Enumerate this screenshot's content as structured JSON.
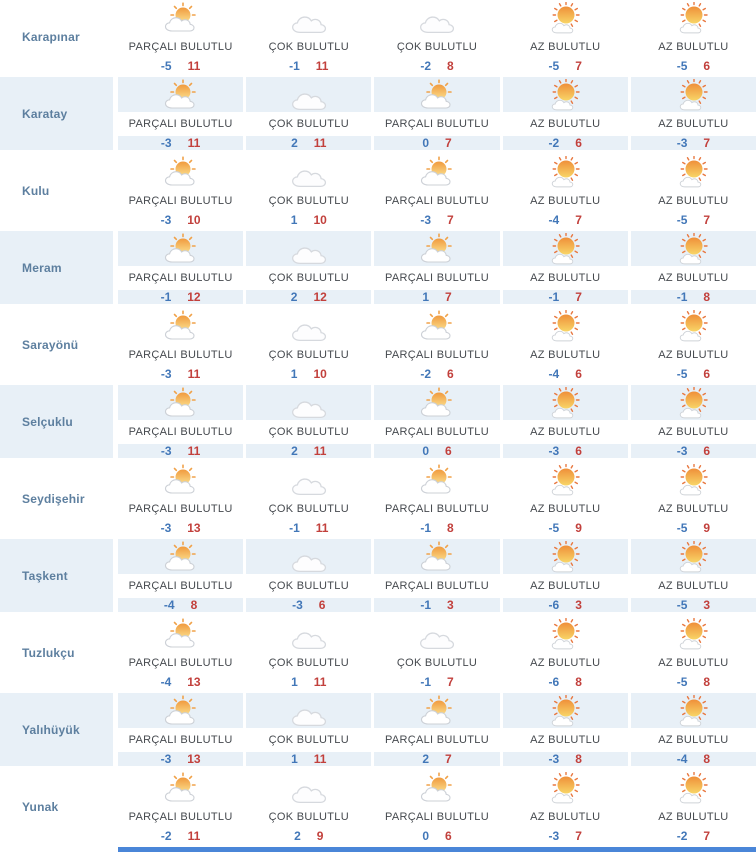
{
  "colors": {
    "row_highlight": "#e8f0f7",
    "district_text": "#5d7f9f",
    "condition_text": "#45494e",
    "min_temp": "#4277b8",
    "max_temp": "#c2403c",
    "bottom_bar": "#4a86d8"
  },
  "rows": [
    {
      "district": "Karapınar",
      "days": [
        {
          "condition": "PARÇALI BULUTLU",
          "icon": "partly-cloudy-icon",
          "min": "-5",
          "max": "11"
        },
        {
          "condition": "ÇOK BULUTLU",
          "icon": "cloudy-icon",
          "min": "-1",
          "max": "11"
        },
        {
          "condition": "ÇOK BULUTLU",
          "icon": "cloudy-icon",
          "min": "-2",
          "max": "8"
        },
        {
          "condition": "AZ BULUTLU",
          "icon": "mostly-sunny-icon",
          "min": "-5",
          "max": "7"
        },
        {
          "condition": "AZ BULUTLU",
          "icon": "mostly-sunny-icon",
          "min": "-5",
          "max": "6"
        }
      ]
    },
    {
      "district": "Karatay",
      "days": [
        {
          "condition": "PARÇALI BULUTLU",
          "icon": "partly-cloudy-icon",
          "min": "-3",
          "max": "11"
        },
        {
          "condition": "ÇOK BULUTLU",
          "icon": "cloudy-icon",
          "min": "2",
          "max": "11"
        },
        {
          "condition": "PARÇALI BULUTLU",
          "icon": "partly-cloudy-icon",
          "min": "0",
          "max": "7"
        },
        {
          "condition": "AZ BULUTLU",
          "icon": "mostly-sunny-icon",
          "min": "-2",
          "max": "6"
        },
        {
          "condition": "AZ BULUTLU",
          "icon": "mostly-sunny-icon",
          "min": "-3",
          "max": "7"
        }
      ]
    },
    {
      "district": "Kulu",
      "days": [
        {
          "condition": "PARÇALI BULUTLU",
          "icon": "partly-cloudy-icon",
          "min": "-3",
          "max": "10"
        },
        {
          "condition": "ÇOK BULUTLU",
          "icon": "cloudy-icon",
          "min": "1",
          "max": "10"
        },
        {
          "condition": "PARÇALI BULUTLU",
          "icon": "partly-cloudy-icon",
          "min": "-3",
          "max": "7"
        },
        {
          "condition": "AZ BULUTLU",
          "icon": "mostly-sunny-icon",
          "min": "-4",
          "max": "7"
        },
        {
          "condition": "AZ BULUTLU",
          "icon": "mostly-sunny-icon",
          "min": "-5",
          "max": "7"
        }
      ]
    },
    {
      "district": "Meram",
      "days": [
        {
          "condition": "PARÇALI BULUTLU",
          "icon": "partly-cloudy-icon",
          "min": "-1",
          "max": "12"
        },
        {
          "condition": "ÇOK BULUTLU",
          "icon": "cloudy-icon",
          "min": "2",
          "max": "12"
        },
        {
          "condition": "PARÇALI BULUTLU",
          "icon": "partly-cloudy-icon",
          "min": "1",
          "max": "7"
        },
        {
          "condition": "AZ BULUTLU",
          "icon": "mostly-sunny-icon",
          "min": "-1",
          "max": "7"
        },
        {
          "condition": "AZ BULUTLU",
          "icon": "mostly-sunny-icon",
          "min": "-1",
          "max": "8"
        }
      ]
    },
    {
      "district": "Sarayönü",
      "days": [
        {
          "condition": "PARÇALI BULUTLU",
          "icon": "partly-cloudy-icon",
          "min": "-3",
          "max": "11"
        },
        {
          "condition": "ÇOK BULUTLU",
          "icon": "cloudy-icon",
          "min": "1",
          "max": "10"
        },
        {
          "condition": "PARÇALI BULUTLU",
          "icon": "partly-cloudy-icon",
          "min": "-2",
          "max": "6"
        },
        {
          "condition": "AZ BULUTLU",
          "icon": "mostly-sunny-icon",
          "min": "-4",
          "max": "6"
        },
        {
          "condition": "AZ BULUTLU",
          "icon": "mostly-sunny-icon",
          "min": "-5",
          "max": "6"
        }
      ]
    },
    {
      "district": "Selçuklu",
      "days": [
        {
          "condition": "PARÇALI BULUTLU",
          "icon": "partly-cloudy-icon",
          "min": "-3",
          "max": "11"
        },
        {
          "condition": "ÇOK BULUTLU",
          "icon": "cloudy-icon",
          "min": "2",
          "max": "11"
        },
        {
          "condition": "PARÇALI BULUTLU",
          "icon": "partly-cloudy-icon",
          "min": "0",
          "max": "6"
        },
        {
          "condition": "AZ BULUTLU",
          "icon": "mostly-sunny-icon",
          "min": "-3",
          "max": "6"
        },
        {
          "condition": "AZ BULUTLU",
          "icon": "mostly-sunny-icon",
          "min": "-3",
          "max": "6"
        }
      ]
    },
    {
      "district": "Seydişehir",
      "days": [
        {
          "condition": "PARÇALI BULUTLU",
          "icon": "partly-cloudy-icon",
          "min": "-3",
          "max": "13"
        },
        {
          "condition": "ÇOK BULUTLU",
          "icon": "cloudy-icon",
          "min": "-1",
          "max": "11"
        },
        {
          "condition": "PARÇALI BULUTLU",
          "icon": "partly-cloudy-icon",
          "min": "-1",
          "max": "8"
        },
        {
          "condition": "AZ BULUTLU",
          "icon": "mostly-sunny-icon",
          "min": "-5",
          "max": "9"
        },
        {
          "condition": "AZ BULUTLU",
          "icon": "mostly-sunny-icon",
          "min": "-5",
          "max": "9"
        }
      ]
    },
    {
      "district": "Taşkent",
      "days": [
        {
          "condition": "PARÇALI BULUTLU",
          "icon": "partly-cloudy-icon",
          "min": "-4",
          "max": "8"
        },
        {
          "condition": "ÇOK BULUTLU",
          "icon": "cloudy-icon",
          "min": "-3",
          "max": "6"
        },
        {
          "condition": "PARÇALI BULUTLU",
          "icon": "partly-cloudy-icon",
          "min": "-1",
          "max": "3"
        },
        {
          "condition": "AZ BULUTLU",
          "icon": "mostly-sunny-icon",
          "min": "-6",
          "max": "3"
        },
        {
          "condition": "AZ BULUTLU",
          "icon": "mostly-sunny-icon",
          "min": "-5",
          "max": "3"
        }
      ]
    },
    {
      "district": "Tuzlukçu",
      "days": [
        {
          "condition": "PARÇALI BULUTLU",
          "icon": "partly-cloudy-icon",
          "min": "-4",
          "max": "13"
        },
        {
          "condition": "ÇOK BULUTLU",
          "icon": "cloudy-icon",
          "min": "1",
          "max": "11"
        },
        {
          "condition": "ÇOK BULUTLU",
          "icon": "cloudy-icon",
          "min": "-1",
          "max": "7"
        },
        {
          "condition": "AZ BULUTLU",
          "icon": "mostly-sunny-icon",
          "min": "-6",
          "max": "8"
        },
        {
          "condition": "AZ BULUTLU",
          "icon": "mostly-sunny-icon",
          "min": "-5",
          "max": "8"
        }
      ]
    },
    {
      "district": "Yalıhüyük",
      "days": [
        {
          "condition": "PARÇALI BULUTLU",
          "icon": "partly-cloudy-icon",
          "min": "-3",
          "max": "13"
        },
        {
          "condition": "ÇOK BULUTLU",
          "icon": "cloudy-icon",
          "min": "1",
          "max": "11"
        },
        {
          "condition": "PARÇALI BULUTLU",
          "icon": "partly-cloudy-icon",
          "min": "2",
          "max": "7"
        },
        {
          "condition": "AZ BULUTLU",
          "icon": "mostly-sunny-icon",
          "min": "-3",
          "max": "8"
        },
        {
          "condition": "AZ BULUTLU",
          "icon": "mostly-sunny-icon",
          "min": "-4",
          "max": "8"
        }
      ]
    },
    {
      "district": "Yunak",
      "days": [
        {
          "condition": "PARÇALI BULUTLU",
          "icon": "partly-cloudy-icon",
          "min": "-2",
          "max": "11"
        },
        {
          "condition": "ÇOK BULUTLU",
          "icon": "cloudy-icon",
          "min": "2",
          "max": "9"
        },
        {
          "condition": "PARÇALI BULUTLU",
          "icon": "partly-cloudy-icon",
          "min": "0",
          "max": "6"
        },
        {
          "condition": "AZ BULUTLU",
          "icon": "mostly-sunny-icon",
          "min": "-3",
          "max": "7"
        },
        {
          "condition": "AZ BULUTLU",
          "icon": "mostly-sunny-icon",
          "min": "-2",
          "max": "7"
        }
      ]
    }
  ]
}
